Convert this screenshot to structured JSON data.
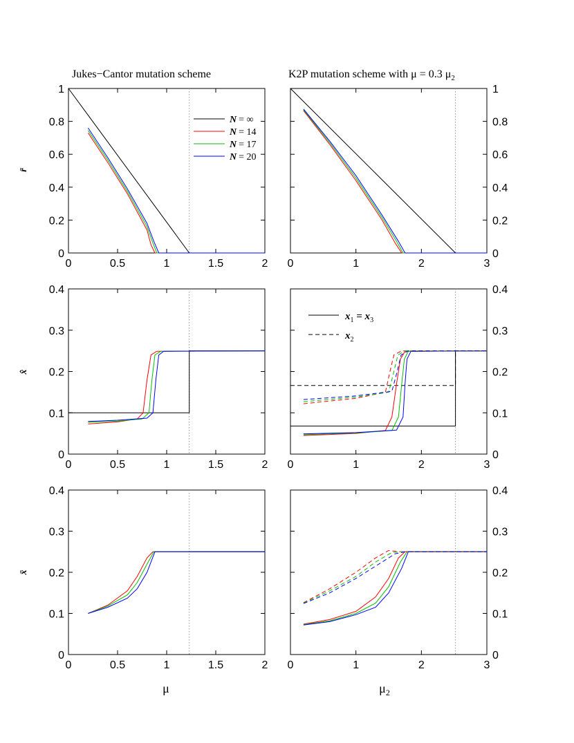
{
  "titles": {
    "left": "Jukes−Cantor mutation scheme",
    "right_prefix": "K2P mutation scheme with μ = 0.3 μ",
    "right_sub": "2"
  },
  "axis_labels": {
    "row1": "r̄",
    "row2": "x̂",
    "row3": "x̄",
    "left_x": "μ",
    "right_x": "μ",
    "right_x_sub": "2"
  },
  "legend_n": {
    "entries": [
      {
        "name": "N",
        "value": "= ∞",
        "color": "#000000"
      },
      {
        "name": "N",
        "value": "= 14",
        "color": "#ff0000"
      },
      {
        "name": "N",
        "value": "= 17",
        "color": "#00c000"
      },
      {
        "name": "N",
        "value": "= 20",
        "color": "#0000ff"
      }
    ]
  },
  "legend_x": {
    "solid_label": "x",
    "solid_sub1": "1",
    "solid_mid": " = x",
    "solid_sub2": "3",
    "dashed_label": "x",
    "dashed_sub": "2"
  },
  "colors": {
    "inf": "#000000",
    "n14": "#ff0000",
    "n17": "#00c000",
    "n20": "#0000ff",
    "marker": "#999999"
  },
  "chart_data": [
    {
      "id": "p00",
      "type": "line",
      "xlim": [
        0,
        2
      ],
      "ylim": [
        0,
        1
      ],
      "xticks": [
        0,
        0.5,
        1,
        1.5,
        2
      ],
      "xtick_labels": [
        "0",
        "0.5",
        "1",
        "1.5",
        "2"
      ],
      "yticks": [
        0,
        0.2,
        0.4,
        0.6,
        0.8,
        1
      ],
      "ytick_labels": [
        "0",
        "0.2",
        "0.4",
        "0.6",
        "0.8",
        "1"
      ],
      "ytick_side": "left",
      "vline": 1.23,
      "series": [
        {
          "name": "N = ∞",
          "color": "#000000",
          "style": "solid",
          "x": [
            0,
            1.23,
            2
          ],
          "y": [
            1,
            0,
            0
          ]
        },
        {
          "name": "N = 14",
          "color": "#ff0000",
          "style": "solid",
          "x": [
            0.2,
            0.4,
            0.6,
            0.8,
            0.84,
            0.88,
            2
          ],
          "y": [
            0.73,
            0.55,
            0.36,
            0.14,
            0.05,
            0,
            0
          ]
        },
        {
          "name": "N = 17",
          "color": "#00c000",
          "style": "solid",
          "x": [
            0.2,
            0.4,
            0.6,
            0.8,
            0.86,
            0.9,
            2
          ],
          "y": [
            0.745,
            0.565,
            0.375,
            0.16,
            0.06,
            0,
            0
          ]
        },
        {
          "name": "N = 20",
          "color": "#0000ff",
          "style": "solid",
          "x": [
            0.2,
            0.4,
            0.6,
            0.8,
            0.87,
            0.92,
            2
          ],
          "y": [
            0.76,
            0.58,
            0.39,
            0.18,
            0.07,
            0,
            0
          ]
        }
      ]
    },
    {
      "id": "p01",
      "type": "line",
      "xlim": [
        0,
        3
      ],
      "ylim": [
        0,
        1
      ],
      "xticks": [
        0,
        1,
        2,
        3
      ],
      "xtick_labels": [
        "0",
        "1",
        "2",
        "3"
      ],
      "yticks": [
        0,
        0.2,
        0.4,
        0.6,
        0.8,
        1
      ],
      "ytick_labels": [
        "0",
        "0.2",
        "0.4",
        "0.6",
        "0.8",
        "1"
      ],
      "ytick_side": "right",
      "vline": 2.52,
      "series": [
        {
          "name": "N = ∞",
          "color": "#000000",
          "style": "solid",
          "x": [
            0,
            2.52,
            3
          ],
          "y": [
            1,
            0,
            0
          ]
        },
        {
          "name": "N = 14",
          "color": "#ff0000",
          "style": "solid",
          "x": [
            0.2,
            0.6,
            1.0,
            1.4,
            1.6,
            1.7,
            3
          ],
          "y": [
            0.865,
            0.66,
            0.44,
            0.2,
            0.06,
            0,
            0
          ]
        },
        {
          "name": "N = 17",
          "color": "#00c000",
          "style": "solid",
          "x": [
            0.2,
            0.6,
            1.0,
            1.4,
            1.62,
            1.72,
            3
          ],
          "y": [
            0.87,
            0.67,
            0.455,
            0.215,
            0.07,
            0,
            0
          ]
        },
        {
          "name": "N = 20",
          "color": "#0000ff",
          "style": "solid",
          "x": [
            0.2,
            0.6,
            1.0,
            1.4,
            1.65,
            1.75,
            3
          ],
          "y": [
            0.875,
            0.68,
            0.47,
            0.23,
            0.07,
            0,
            0
          ]
        }
      ]
    },
    {
      "id": "p10",
      "type": "line",
      "xlim": [
        0,
        2
      ],
      "ylim": [
        0,
        0.4
      ],
      "xticks": [
        0,
        0.5,
        1,
        1.5,
        2
      ],
      "xtick_labels": [
        "0",
        "0.5",
        "1",
        "1.5",
        "2"
      ],
      "yticks": [
        0,
        0.1,
        0.2,
        0.3,
        0.4
      ],
      "ytick_labels": [
        "0",
        "0.1",
        "0.2",
        "0.3",
        "0.4"
      ],
      "ytick_side": "left",
      "vline": 1.23,
      "series": [
        {
          "name": "N = ∞",
          "color": "#000000",
          "style": "solid",
          "x": [
            0,
            1.23,
            1.23,
            2
          ],
          "y": [
            0.1,
            0.1,
            0.25,
            0.25
          ]
        },
        {
          "name": "N = 14",
          "color": "#ff0000",
          "style": "solid",
          "x": [
            0.2,
            0.5,
            0.7,
            0.76,
            0.8,
            0.84,
            0.9,
            2
          ],
          "y": [
            0.073,
            0.078,
            0.085,
            0.1,
            0.18,
            0.24,
            0.249,
            0.25
          ]
        },
        {
          "name": "N = 17",
          "color": "#00c000",
          "style": "solid",
          "x": [
            0.2,
            0.5,
            0.75,
            0.82,
            0.85,
            0.88,
            0.94,
            2
          ],
          "y": [
            0.077,
            0.08,
            0.085,
            0.1,
            0.18,
            0.24,
            0.249,
            0.25
          ]
        },
        {
          "name": "N = 20",
          "color": "#0000ff",
          "style": "solid",
          "x": [
            0.2,
            0.5,
            0.8,
            0.86,
            0.89,
            0.92,
            0.97,
            2
          ],
          "y": [
            0.079,
            0.082,
            0.087,
            0.1,
            0.18,
            0.24,
            0.249,
            0.25
          ]
        }
      ]
    },
    {
      "id": "p11",
      "type": "line",
      "xlim": [
        0,
        3
      ],
      "ylim": [
        0,
        0.4
      ],
      "xticks": [
        0,
        1,
        2,
        3
      ],
      "xtick_labels": [
        "0",
        "1",
        "2",
        "3"
      ],
      "yticks": [
        0,
        0.1,
        0.2,
        0.3,
        0.4
      ],
      "ytick_labels": [
        "0",
        "0.1",
        "0.2",
        "0.3",
        "0.4"
      ],
      "ytick_side": "right",
      "vline": 2.52,
      "series": [
        {
          "name": "x1 = x3, N = ∞",
          "color": "#000000",
          "style": "solid",
          "x": [
            0,
            2.52,
            2.52,
            3
          ],
          "y": [
            0.068,
            0.068,
            0.25,
            0.25
          ]
        },
        {
          "name": "x2, N = ∞",
          "color": "#000000",
          "style": "dashed",
          "x": [
            0,
            2.52,
            2.52,
            3
          ],
          "y": [
            0.166,
            0.166,
            0.25,
            0.25
          ]
        },
        {
          "name": "x1 = x3, N = 14",
          "color": "#ff0000",
          "style": "solid",
          "x": [
            0.2,
            1.0,
            1.45,
            1.55,
            1.62,
            1.68,
            1.75,
            3
          ],
          "y": [
            0.045,
            0.05,
            0.057,
            0.09,
            0.17,
            0.23,
            0.249,
            0.25
          ]
        },
        {
          "name": "x1 = x3, N = 17",
          "color": "#00c000",
          "style": "solid",
          "x": [
            0.2,
            1.0,
            1.55,
            1.65,
            1.7,
            1.74,
            1.8,
            3
          ],
          "y": [
            0.047,
            0.051,
            0.057,
            0.09,
            0.17,
            0.23,
            0.249,
            0.25
          ]
        },
        {
          "name": "x1 = x3, N = 20",
          "color": "#0000ff",
          "style": "solid",
          "x": [
            0.2,
            1.0,
            1.62,
            1.72,
            1.75,
            1.78,
            1.84,
            3
          ],
          "y": [
            0.049,
            0.052,
            0.058,
            0.09,
            0.17,
            0.23,
            0.249,
            0.25
          ]
        },
        {
          "name": "x2, N = 14",
          "color": "#ff0000",
          "style": "dashed",
          "x": [
            0.2,
            1.0,
            1.45,
            1.52,
            1.58,
            1.7,
            3
          ],
          "y": [
            0.122,
            0.135,
            0.15,
            0.2,
            0.24,
            0.25,
            0.25
          ]
        },
        {
          "name": "x2, N = 17",
          "color": "#00c000",
          "style": "dashed",
          "x": [
            0.2,
            1.0,
            1.5,
            1.58,
            1.64,
            1.75,
            3
          ],
          "y": [
            0.127,
            0.138,
            0.15,
            0.2,
            0.24,
            0.25,
            0.25
          ]
        },
        {
          "name": "x2, N = 20",
          "color": "#0000ff",
          "style": "dashed",
          "x": [
            0.2,
            1.0,
            1.55,
            1.63,
            1.69,
            1.8,
            3
          ],
          "y": [
            0.132,
            0.141,
            0.152,
            0.2,
            0.24,
            0.25,
            0.25
          ]
        }
      ]
    },
    {
      "id": "p20",
      "type": "line",
      "xlim": [
        0,
        2
      ],
      "ylim": [
        0,
        0.4
      ],
      "xticks": [
        0,
        0.5,
        1,
        1.5,
        2
      ],
      "xtick_labels": [
        "0",
        "0.5",
        "1",
        "1.5",
        "2"
      ],
      "yticks": [
        0,
        0.1,
        0.2,
        0.3,
        0.4
      ],
      "ytick_labels": [
        "0",
        "0.1",
        "0.2",
        "0.3",
        "0.4"
      ],
      "ytick_side": "left",
      "vline": 1.23,
      "series": [
        {
          "name": "N = ∞",
          "color": "#000000",
          "style": "solid",
          "x": [
            1.23,
            2
          ],
          "y": [
            0.25,
            0.25
          ]
        },
        {
          "name": "N = 14",
          "color": "#ff0000",
          "style": "solid",
          "x": [
            0.2,
            0.4,
            0.6,
            0.7,
            0.8,
            0.86,
            2
          ],
          "y": [
            0.1,
            0.12,
            0.155,
            0.19,
            0.235,
            0.25,
            0.25
          ]
        },
        {
          "name": "N = 17",
          "color": "#00c000",
          "style": "solid",
          "x": [
            0.2,
            0.4,
            0.6,
            0.7,
            0.8,
            0.87,
            2
          ],
          "y": [
            0.1,
            0.118,
            0.145,
            0.175,
            0.22,
            0.25,
            0.25
          ]
        },
        {
          "name": "N = 20",
          "color": "#0000ff",
          "style": "solid",
          "x": [
            0.2,
            0.4,
            0.6,
            0.7,
            0.8,
            0.88,
            2
          ],
          "y": [
            0.1,
            0.115,
            0.137,
            0.16,
            0.2,
            0.25,
            0.25
          ]
        }
      ]
    },
    {
      "id": "p21",
      "type": "line",
      "xlim": [
        0,
        3
      ],
      "ylim": [
        0,
        0.4
      ],
      "xticks": [
        0,
        1,
        2,
        3
      ],
      "xtick_labels": [
        "0",
        "1",
        "2",
        "3"
      ],
      "yticks": [
        0,
        0.1,
        0.2,
        0.3,
        0.4
      ],
      "ytick_labels": [
        "0",
        "0.1",
        "0.2",
        "0.3",
        "0.4"
      ],
      "ytick_side": "right",
      "vline": 2.52,
      "series": [
        {
          "name": "x1 = x3, N = 14",
          "color": "#ff0000",
          "style": "solid",
          "x": [
            0.2,
            0.6,
            1.0,
            1.3,
            1.5,
            1.65,
            1.75,
            3
          ],
          "y": [
            0.074,
            0.085,
            0.105,
            0.14,
            0.185,
            0.235,
            0.25,
            0.25
          ]
        },
        {
          "name": "x1 = x3, N = 17",
          "color": "#00c000",
          "style": "solid",
          "x": [
            0.2,
            0.6,
            1.0,
            1.3,
            1.5,
            1.68,
            1.78,
            3
          ],
          "y": [
            0.073,
            0.082,
            0.1,
            0.125,
            0.165,
            0.225,
            0.25,
            0.25
          ]
        },
        {
          "name": "x1 = x3, N = 20",
          "color": "#0000ff",
          "style": "solid",
          "x": [
            0.2,
            0.6,
            1.0,
            1.3,
            1.5,
            1.7,
            1.8,
            3
          ],
          "y": [
            0.072,
            0.08,
            0.097,
            0.115,
            0.15,
            0.21,
            0.25,
            0.25
          ]
        },
        {
          "name": "x2, N = 14",
          "color": "#ff0000",
          "style": "dashed",
          "x": [
            0.2,
            0.6,
            1.0,
            1.3,
            1.5,
            1.65,
            3
          ],
          "y": [
            0.126,
            0.16,
            0.2,
            0.235,
            0.253,
            0.25,
            0.25
          ]
        },
        {
          "name": "x2, N = 17",
          "color": "#00c000",
          "style": "dashed",
          "x": [
            0.2,
            0.6,
            1.0,
            1.3,
            1.55,
            1.7,
            3
          ],
          "y": [
            0.125,
            0.155,
            0.19,
            0.225,
            0.248,
            0.25,
            0.25
          ]
        },
        {
          "name": "x2, N = 20",
          "color": "#0000ff",
          "style": "dashed",
          "x": [
            0.2,
            0.6,
            1.0,
            1.3,
            1.6,
            1.75,
            3
          ],
          "y": [
            0.124,
            0.15,
            0.185,
            0.215,
            0.245,
            0.25,
            0.25
          ]
        }
      ]
    }
  ]
}
